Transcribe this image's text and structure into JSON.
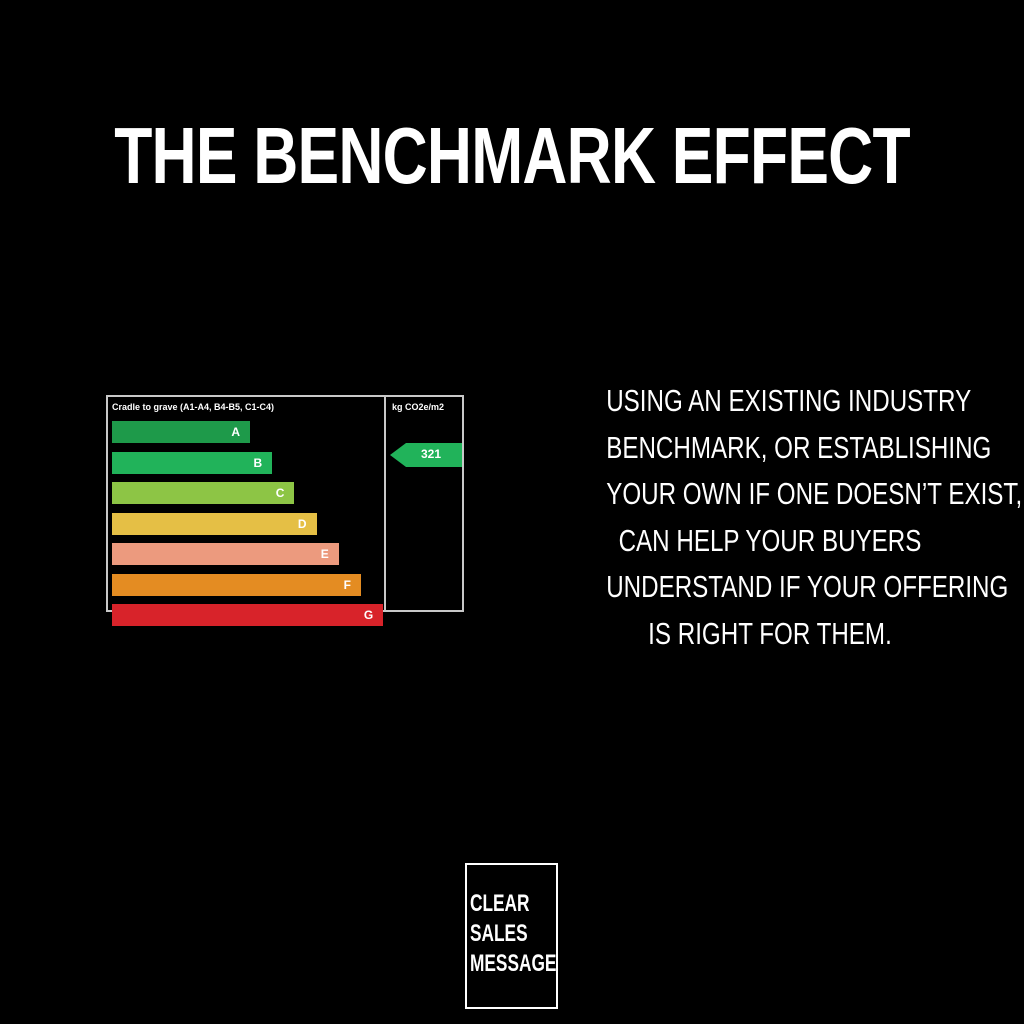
{
  "title": "THE BENCHMARK EFFECT",
  "rating_panel": {
    "header_left": "Cradle to grave (A1-A4, B4-B5, C1-C4)",
    "header_right": "kg CO2e/m2",
    "bands": [
      {
        "label": "A",
        "color": "#1e9a4a"
      },
      {
        "label": "B",
        "color": "#21b35a"
      },
      {
        "label": "C",
        "color": "#8dc545"
      },
      {
        "label": "D",
        "color": "#e5bf45"
      },
      {
        "label": "E",
        "color": "#ec9a7e"
      },
      {
        "label": "F",
        "color": "#e48c22"
      },
      {
        "label": "G",
        "color": "#d8232a"
      }
    ],
    "value": "321",
    "value_band": "B",
    "value_color": "#21b35a"
  },
  "body": {
    "lines": [
      "USING AN EXISTING INDUSTRY",
      "BENCHMARK, OR ESTABLISHING",
      "YOUR OWN IF ONE DOESN’T EXIST,",
      "CAN HELP YOUR BUYERS",
      "UNDERSTAND IF YOUR OFFERING",
      "IS RIGHT FOR THEM."
    ]
  },
  "logo": {
    "lines": [
      "CLEAR",
      "SALES",
      "MESSAGE"
    ]
  }
}
